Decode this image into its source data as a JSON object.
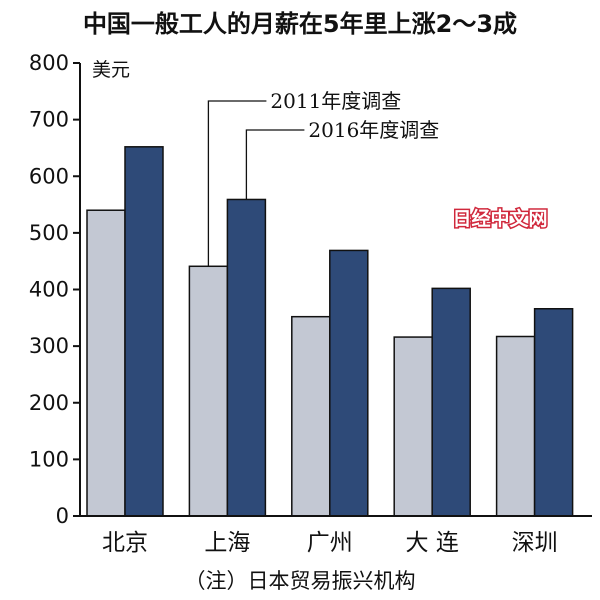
{
  "chart_data": {
    "type": "bar",
    "title": "中国一般工人的月薪在5年里上涨2～3成",
    "ylabel": "美元",
    "ylim": [
      0,
      800
    ],
    "yticks": [
      0,
      100,
      200,
      300,
      400,
      500,
      600,
      700,
      800
    ],
    "grid": false,
    "categories": [
      "北京",
      "上海",
      "广州",
      "大 连",
      "深圳"
    ],
    "series": [
      {
        "name": "2011年度调查",
        "values": [
          540,
          441,
          352,
          316,
          317
        ],
        "color": "#c3c8d3"
      },
      {
        "name": "2016年度调查",
        "values": [
          652,
          559,
          469,
          402,
          366
        ],
        "color": "#2e4a78"
      }
    ],
    "note": "（注）日本贸易振兴机构"
  },
  "watermark": "日经中文网"
}
